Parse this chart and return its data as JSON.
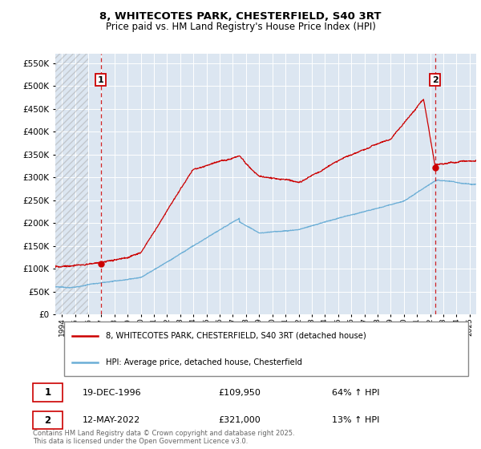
{
  "title": "8, WHITECOTES PARK, CHESTERFIELD, S40 3RT",
  "subtitle": "Price paid vs. HM Land Registry's House Price Index (HPI)",
  "ylim": [
    0,
    570000
  ],
  "yticks": [
    0,
    50000,
    100000,
    150000,
    200000,
    250000,
    300000,
    350000,
    400000,
    450000,
    500000,
    550000
  ],
  "xlim_start": 1993.5,
  "xlim_end": 2025.5,
  "background_color": "#ffffff",
  "plot_bg_color": "#dce6f1",
  "grid_color": "#ffffff",
  "red_line_color": "#cc0000",
  "blue_line_color": "#6baed6",
  "marker1_date": 1996.96,
  "marker2_date": 2022.37,
  "marker1_value": 109950,
  "marker2_value": 321000,
  "marker1_label": "1",
  "marker2_label": "2",
  "legend_label_red": "8, WHITECOTES PARK, CHESTERFIELD, S40 3RT (detached house)",
  "legend_label_blue": "HPI: Average price, detached house, Chesterfield",
  "table_row1": [
    "1",
    "19-DEC-1996",
    "£109,950",
    "64% ↑ HPI"
  ],
  "table_row2": [
    "2",
    "12-MAY-2022",
    "£321,000",
    "13% ↑ HPI"
  ],
  "footnote": "Contains HM Land Registry data © Crown copyright and database right 2025.\nThis data is licensed under the Open Government Licence v3.0.",
  "dashed_line1_x": 1996.96,
  "dashed_line2_x": 2022.37,
  "hatch_end_x": 1996.0
}
